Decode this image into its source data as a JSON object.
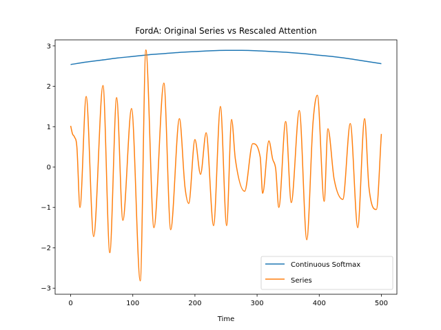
{
  "chart_data": {
    "type": "line",
    "title": "FordA: Original Series vs Rescaled Attention",
    "xlabel": "Time",
    "ylabel": "",
    "xlim": [
      -25,
      525
    ],
    "ylim": [
      -3.15,
      3.15
    ],
    "xticks": [
      0,
      100,
      200,
      300,
      400,
      500
    ],
    "yticks": [
      -3,
      -2,
      -1,
      0,
      1,
      2,
      3
    ],
    "grid": false,
    "legend_position": "lower-right",
    "series": [
      {
        "name": "Continuous Softmax",
        "color": "#1f77b4",
        "x": [
          0,
          25,
          50,
          75,
          100,
          125,
          150,
          175,
          200,
          225,
          250,
          275,
          300,
          325,
          350,
          375,
          400,
          425,
          450,
          475,
          500
        ],
        "y": [
          2.54,
          2.6,
          2.65,
          2.7,
          2.74,
          2.78,
          2.81,
          2.84,
          2.86,
          2.88,
          2.89,
          2.89,
          2.88,
          2.86,
          2.84,
          2.81,
          2.77,
          2.73,
          2.68,
          2.62,
          2.56
        ]
      },
      {
        "name": "Series",
        "color": "#ff7f0e",
        "x": [
          0,
          3,
          6,
          10,
          15,
          25,
          37,
          52,
          63,
          74,
          84,
          98,
          112,
          121,
          134,
          150,
          161,
          175,
          184,
          190,
          200,
          209,
          218,
          230,
          241,
          251,
          259,
          265,
          280,
          293,
          305,
          309,
          319,
          325,
          330,
          335,
          346,
          355,
          368,
          380,
          390,
          397,
          408,
          414,
          424,
          438,
          450,
          462,
          473,
          480,
          492,
          500
        ],
        "y": [
          1.02,
          0.82,
          0.75,
          0.5,
          -1.0,
          1.75,
          -1.72,
          2.02,
          -2.12,
          1.72,
          -1.32,
          1.45,
          -2.82,
          2.9,
          -1.5,
          2.08,
          -1.55,
          1.2,
          -0.5,
          -0.9,
          0.68,
          -0.18,
          0.85,
          -1.45,
          1.5,
          -1.45,
          1.18,
          0.2,
          -0.6,
          0.58,
          0.25,
          -0.65,
          0.65,
          0.2,
          -0.05,
          -1.0,
          1.13,
          -0.88,
          1.4,
          -1.8,
          1.1,
          1.78,
          -0.85,
          0.95,
          -0.3,
          -0.8,
          1.08,
          -1.5,
          1.2,
          -0.5,
          -1.05,
          0.82
        ]
      }
    ]
  }
}
